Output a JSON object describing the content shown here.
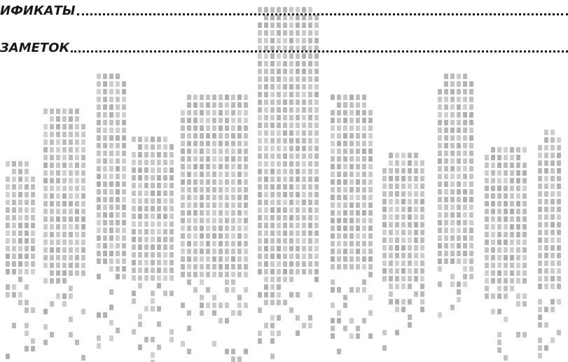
{
  "rows": [
    {
      "label": "ИФИКАТЫ"
    },
    {
      "label": "ЗАМЕТОК"
    }
  ]
}
